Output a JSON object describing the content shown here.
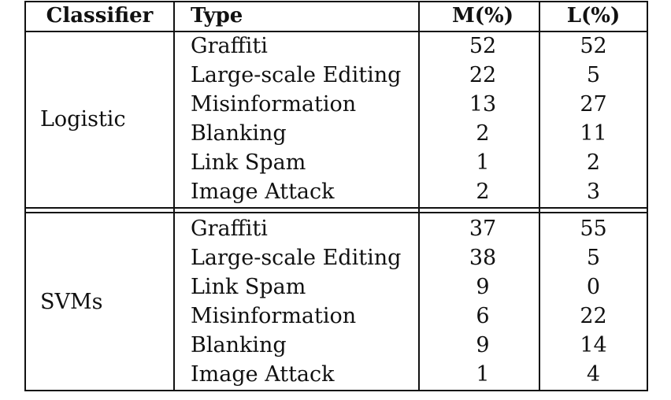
{
  "table": {
    "headers": {
      "classifier": "Classifier",
      "type": "Type",
      "m": "M(%)",
      "l": "L(%)"
    },
    "groups": [
      {
        "classifier": "Logistic",
        "rows": [
          {
            "type": "Graffiti",
            "m": "52",
            "l": "52"
          },
          {
            "type": "Large-scale Editing",
            "m": "22",
            "l": "5"
          },
          {
            "type": "Misinformation",
            "m": "13",
            "l": "27"
          },
          {
            "type": "Blanking",
            "m": "2",
            "l": "11"
          },
          {
            "type": "Link Spam",
            "m": "1",
            "l": "2"
          },
          {
            "type": "Image Attack",
            "m": "2",
            "l": "3"
          }
        ]
      },
      {
        "classifier": "SVMs",
        "rows": [
          {
            "type": "Graffiti",
            "m": "37",
            "l": "55"
          },
          {
            "type": "Large-scale Editing",
            "m": "38",
            "l": "5"
          },
          {
            "type": "Link Spam",
            "m": "9",
            "l": "0"
          },
          {
            "type": "Misinformation",
            "m": "6",
            "l": "22"
          },
          {
            "type": "Blanking",
            "m": "9",
            "l": "14"
          },
          {
            "type": "Image Attack",
            "m": "1",
            "l": "4"
          }
        ]
      }
    ]
  }
}
